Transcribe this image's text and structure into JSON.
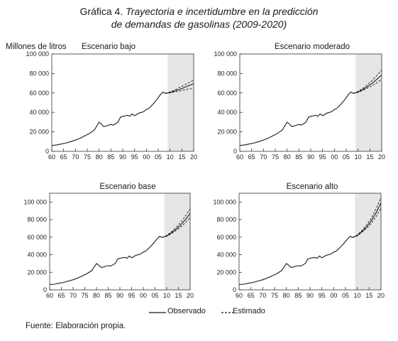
{
  "figure": {
    "title_prefix": "Gráfica 4.",
    "title_line1_italic": "Trayectoria e incertidumbre en la predicción",
    "title_line2_italic": "de demandas de gasolinas (2009-2020)",
    "ylabel": "Millones de litros",
    "source": "Fuente: Elaboración propia."
  },
  "legend": {
    "observed": "Observado",
    "estimated": "Estimado"
  },
  "colors": {
    "line": "#1a1a1a",
    "forecast_band": "#e6e6e6",
    "axis": "#333333"
  },
  "chart_data": [
    {
      "type": "line",
      "title": "Escenario bajo",
      "xticks": [
        "60",
        "65",
        "70",
        "75",
        "80",
        "85",
        "90",
        "95",
        "00",
        "05",
        "10",
        "15",
        "20"
      ],
      "yticks": [
        "0",
        "20 000",
        "40 000",
        "60 000",
        "80 000",
        "100 000"
      ],
      "xlim": [
        1960,
        2020
      ],
      "ylim": [
        0,
        100000
      ],
      "forecast_shade": [
        2009,
        2020
      ],
      "observed": {
        "x": [
          1960,
          1962,
          1964,
          1966,
          1968,
          1970,
          1972,
          1974,
          1976,
          1978,
          1980,
          1981,
          1982,
          1983,
          1984,
          1985,
          1986,
          1987,
          1988,
          1989,
          1990,
          1991,
          1992,
          1993,
          1994,
          1995,
          1996,
          1997,
          1998,
          1999,
          2000,
          2001,
          2002,
          2003,
          2004,
          2005,
          2006,
          2007,
          2008
        ],
        "y": [
          6000,
          6500,
          7500,
          8500,
          10000,
          11500,
          13500,
          16000,
          18500,
          22000,
          30000,
          28000,
          25500,
          26000,
          27000,
          27500,
          27000,
          28500,
          30000,
          35000,
          36000,
          36500,
          37000,
          36000,
          38500,
          36500,
          38000,
          39500,
          40000,
          41000,
          43000,
          44000,
          46500,
          49000,
          52000,
          55000,
          58500,
          61000,
          59500
        ]
      },
      "estimated": {
        "x": [
          2008,
          2010,
          2012,
          2014,
          2016,
          2018,
          2020
        ],
        "central": [
          59500,
          60500,
          62000,
          63500,
          65500,
          67500,
          69500
        ],
        "upper": [
          59500,
          61000,
          63000,
          65500,
          68000,
          70500,
          73000
        ],
        "lower": [
          59500,
          60000,
          61000,
          62000,
          63000,
          64000,
          65000
        ]
      }
    },
    {
      "type": "line",
      "title": "Escenario moderado",
      "xticks": [
        "60",
        "65",
        "70",
        "75",
        "80",
        "85",
        "90",
        "95",
        "00",
        "05",
        "10",
        "15",
        "20"
      ],
      "yticks": [
        "0",
        "20 000",
        "40 000",
        "60 000",
        "80 000",
        "100 000"
      ],
      "xlim": [
        1960,
        2020
      ],
      "ylim": [
        0,
        100000
      ],
      "forecast_shade": [
        2009,
        2020
      ],
      "observed": {
        "x": [
          1960,
          1962,
          1964,
          1966,
          1968,
          1970,
          1972,
          1974,
          1976,
          1978,
          1980,
          1981,
          1982,
          1983,
          1984,
          1985,
          1986,
          1987,
          1988,
          1989,
          1990,
          1991,
          1992,
          1993,
          1994,
          1995,
          1996,
          1997,
          1998,
          1999,
          2000,
          2001,
          2002,
          2003,
          2004,
          2005,
          2006,
          2007,
          2008
        ],
        "y": [
          6000,
          6500,
          7500,
          8500,
          10000,
          11500,
          13500,
          16000,
          18500,
          22000,
          30000,
          28000,
          25500,
          26000,
          27000,
          27500,
          27000,
          28500,
          30000,
          35000,
          36000,
          36500,
          37000,
          36000,
          38500,
          36500,
          38000,
          39500,
          40000,
          41000,
          43000,
          44000,
          46500,
          49000,
          52000,
          55000,
          58500,
          61000,
          59500
        ]
      },
      "estimated": {
        "x": [
          2008,
          2010,
          2012,
          2014,
          2016,
          2018,
          2020
        ],
        "central": [
          59500,
          61000,
          63500,
          66500,
          70000,
          74000,
          78500
        ],
        "upper": [
          59500,
          61500,
          64500,
          68500,
          73000,
          78000,
          83500
        ],
        "lower": [
          59500,
          60500,
          62500,
          65000,
          67500,
          70500,
          74000
        ]
      }
    },
    {
      "type": "line",
      "title": "Escenario base",
      "xticks": [
        "60",
        "65",
        "70",
        "75",
        "80",
        "85",
        "90",
        "95",
        "00",
        "05",
        "10",
        "15",
        "20"
      ],
      "yticks": [
        "0",
        "20 000",
        "40 000",
        "60 000",
        "80 000",
        "100 000"
      ],
      "xlim": [
        1960,
        2020
      ],
      "ylim": [
        0,
        110000
      ],
      "forecast_shade": [
        2009,
        2020
      ],
      "observed": {
        "x": [
          1960,
          1962,
          1964,
          1966,
          1968,
          1970,
          1972,
          1974,
          1976,
          1978,
          1980,
          1981,
          1982,
          1983,
          1984,
          1985,
          1986,
          1987,
          1988,
          1989,
          1990,
          1991,
          1992,
          1993,
          1994,
          1995,
          1996,
          1997,
          1998,
          1999,
          2000,
          2001,
          2002,
          2003,
          2004,
          2005,
          2006,
          2007,
          2008
        ],
        "y": [
          6000,
          6500,
          7500,
          8500,
          10000,
          11500,
          13500,
          16000,
          18500,
          22000,
          30000,
          28000,
          25500,
          26000,
          27000,
          27500,
          27000,
          28500,
          30000,
          35000,
          36000,
          36500,
          37000,
          36000,
          38500,
          36500,
          38000,
          39500,
          40000,
          41000,
          43000,
          44000,
          46500,
          49000,
          52000,
          55000,
          58500,
          61000,
          59500
        ]
      },
      "estimated": {
        "x": [
          2008,
          2010,
          2012,
          2014,
          2016,
          2018,
          2020
        ],
        "central": [
          59500,
          61500,
          65000,
          69000,
          74000,
          80000,
          87000
        ],
        "upper": [
          59500,
          62000,
          66000,
          71000,
          77000,
          84000,
          92000
        ],
        "lower": [
          59500,
          61000,
          64000,
          67500,
          71500,
          76500,
          82000
        ]
      }
    },
    {
      "type": "line",
      "title": "Escenario alto",
      "xticks": [
        "60",
        "65",
        "70",
        "75",
        "80",
        "85",
        "90",
        "95",
        "00",
        "05",
        "10",
        "15",
        "20"
      ],
      "yticks": [
        "0",
        "20 000",
        "40 000",
        "60 000",
        "80 000",
        "100 000"
      ],
      "xlim": [
        1960,
        2020
      ],
      "ylim": [
        0,
        110000
      ],
      "forecast_shade": [
        2009,
        2020
      ],
      "observed": {
        "x": [
          1960,
          1962,
          1964,
          1966,
          1968,
          1970,
          1972,
          1974,
          1976,
          1978,
          1980,
          1981,
          1982,
          1983,
          1984,
          1985,
          1986,
          1987,
          1988,
          1989,
          1990,
          1991,
          1992,
          1993,
          1994,
          1995,
          1996,
          1997,
          1998,
          1999,
          2000,
          2001,
          2002,
          2003,
          2004,
          2005,
          2006,
          2007,
          2008
        ],
        "y": [
          6000,
          6500,
          7500,
          8500,
          10000,
          11500,
          13500,
          16000,
          18500,
          22000,
          30000,
          28000,
          25500,
          26000,
          27000,
          27500,
          27000,
          28500,
          30000,
          35000,
          36000,
          36500,
          37000,
          36000,
          38500,
          36500,
          38000,
          39500,
          40000,
          41000,
          43000,
          44000,
          46500,
          49000,
          52000,
          55000,
          58500,
          61000,
          59500
        ]
      },
      "estimated": {
        "x": [
          2008,
          2010,
          2012,
          2014,
          2016,
          2018,
          2020
        ],
        "central": [
          59500,
          62000,
          66500,
          72000,
          79000,
          88000,
          99000
        ],
        "upper": [
          59500,
          62500,
          67500,
          74000,
          82000,
          92500,
          105000
        ],
        "lower": [
          59500,
          61500,
          65500,
          70000,
          76000,
          83500,
          93000
        ]
      }
    }
  ]
}
